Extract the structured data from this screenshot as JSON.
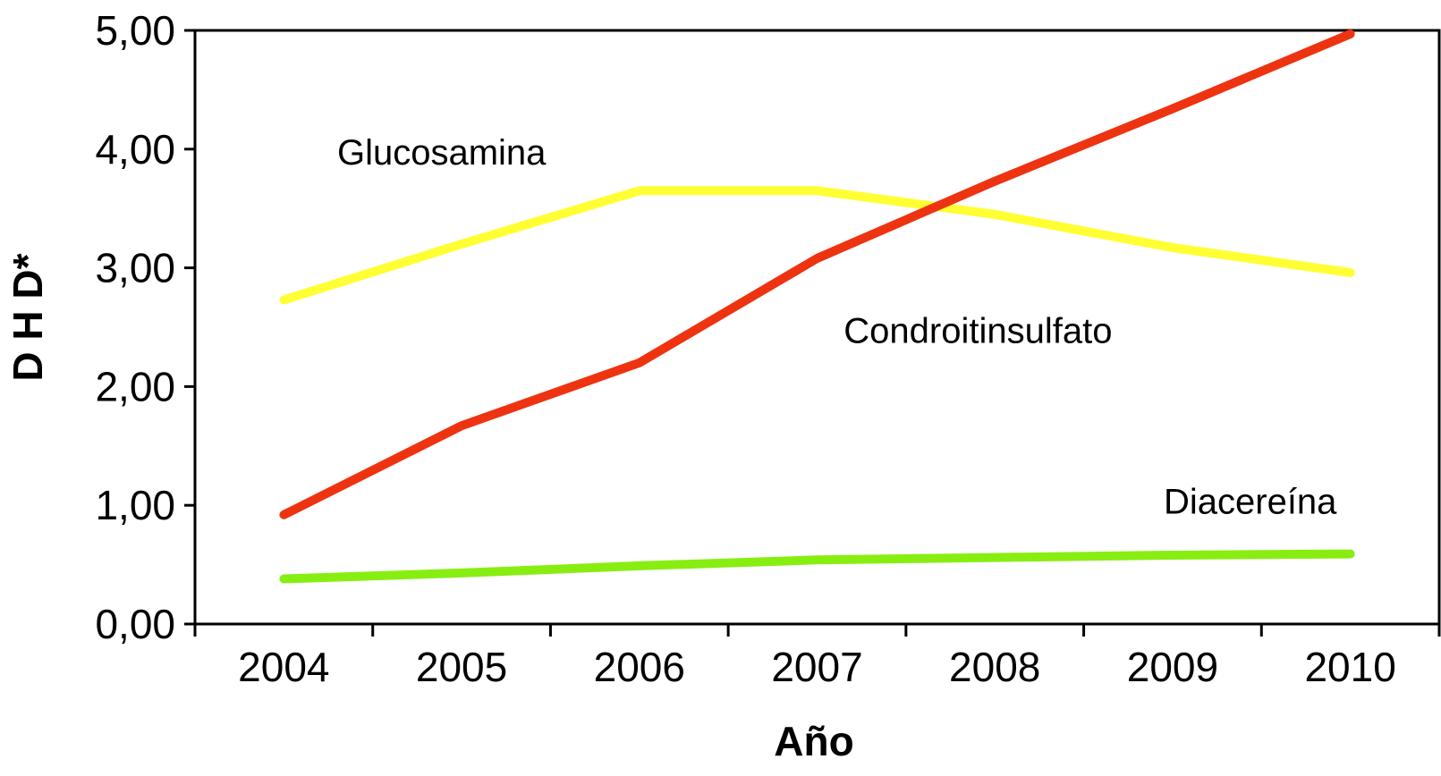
{
  "chart_data": {
    "type": "line",
    "categories": [
      "2004",
      "2005",
      "2006",
      "2007",
      "2008",
      "2009",
      "2010"
    ],
    "series": [
      {
        "name": "Glucosamina",
        "color": "#ffff33",
        "values": [
          2.73,
          3.2,
          3.65,
          3.65,
          3.45,
          3.17,
          2.96
        ]
      },
      {
        "name": "Condroitinsulfato",
        "color": "#ee3311",
        "values": [
          0.92,
          1.67,
          2.2,
          3.08,
          3.73,
          4.34,
          4.97
        ]
      },
      {
        "name": "Diacereína",
        "color": "#88ee11",
        "values": [
          0.38,
          0.43,
          0.49,
          0.54,
          0.56,
          0.58,
          0.59
        ]
      }
    ],
    "xlabel": "Año",
    "ylabel": "D H D*",
    "ylim": [
      0,
      5
    ],
    "yticks": [
      "0,00",
      "1,00",
      "2,00",
      "3,00",
      "4,00",
      "5,00"
    ]
  }
}
